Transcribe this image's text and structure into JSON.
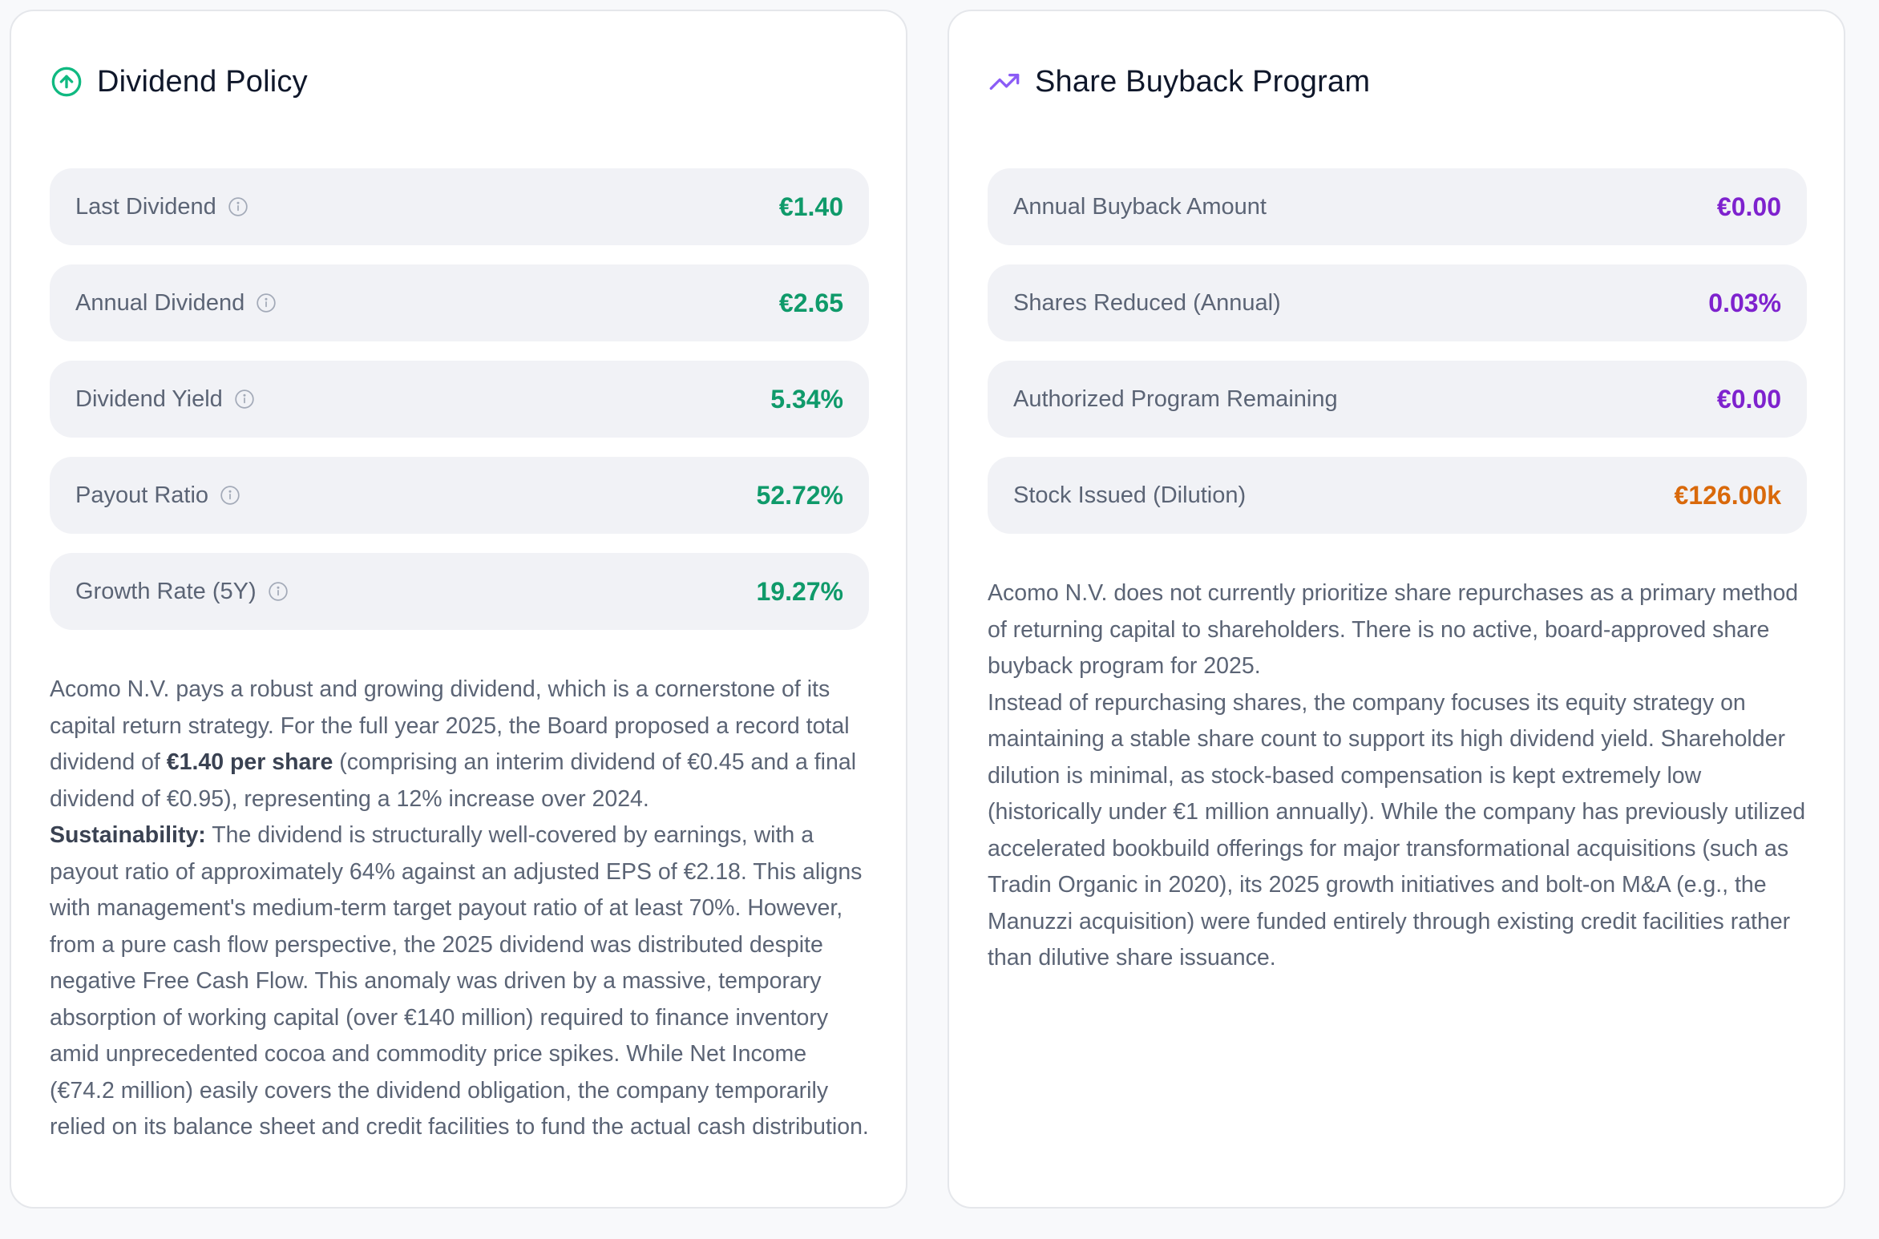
{
  "colors": {
    "green": "#0f9a6a",
    "purple": "#7e22ce",
    "orange": "#d9690b"
  },
  "dividend": {
    "title": "Dividend Policy",
    "icon": "arrow-up-circle-icon",
    "metrics": [
      {
        "label": "Last Dividend",
        "value": "€1.40"
      },
      {
        "label": "Annual Dividend",
        "value": "€2.65"
      },
      {
        "label": "Dividend Yield",
        "value": "5.34%"
      },
      {
        "label": "Payout Ratio",
        "value": "52.72%"
      },
      {
        "label": "Growth Rate (5Y)",
        "value": "19.27%"
      }
    ],
    "description": {
      "p1_a": "Acomo N.V. pays a robust and growing dividend, which is a cornerstone of its capital return strategy. For the full year 2025, the Board proposed a record total dividend of ",
      "p1_bold": "€1.40 per share",
      "p1_b": " (comprising an interim dividend of €0.45 and a final dividend of €0.95), representing a 12% increase over 2024.",
      "p2_bold": "Sustainability:",
      "p2_a": " The dividend is structurally well-covered by earnings, with a payout ratio of approximately 64% against an adjusted EPS of €2.18. This aligns with management's medium-term target payout ratio of at least 70%. However, from a pure cash flow perspective, the 2025 dividend was distributed despite negative Free Cash Flow. This anomaly was driven by a massive, temporary absorption of working capital (over €140 million) required to finance inventory amid unprecedented cocoa and commodity price spikes. While Net Income (€74.2 million) easily covers the dividend obligation, the company temporarily relied on its balance sheet and credit facilities to fund the actual cash distribution."
    }
  },
  "buyback": {
    "title": "Share Buyback Program",
    "icon": "trending-up-icon",
    "metrics": [
      {
        "label": "Annual Buyback Amount",
        "value": "€0.00"
      },
      {
        "label": "Shares Reduced (Annual)",
        "value": "0.03%"
      },
      {
        "label": "Authorized Program Remaining",
        "value": "€0.00"
      },
      {
        "label": "Stock Issued (Dilution)",
        "value": "€126.00k"
      }
    ],
    "description": {
      "p1": "Acomo N.V. does not currently prioritize share repurchases as a primary method of returning capital to shareholders. There is no active, board-approved share buyback program for 2025.",
      "p2": "Instead of repurchasing shares, the company focuses its equity strategy on maintaining a stable share count to support its high dividend yield. Shareholder dilution is minimal, as stock-based compensation is kept extremely low (historically under €1 million annually). While the company has previously utilized accelerated bookbuild offerings for major transformational acquisitions (such as Tradin Organic in 2020), its 2025 growth initiatives and bolt-on M&A (e.g., the Manuzzi acquisition) were funded entirely through existing credit facilities rather than dilutive share issuance."
    }
  }
}
